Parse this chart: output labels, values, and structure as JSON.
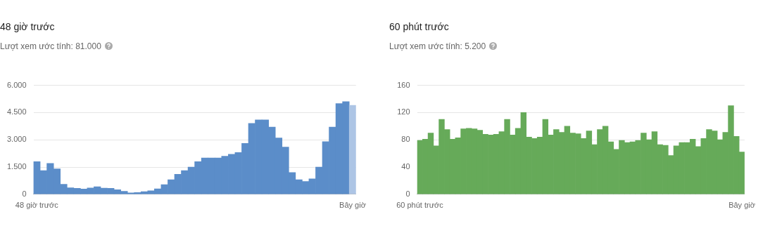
{
  "chart_data": [
    {
      "type": "bar",
      "title": "48 giờ trước",
      "subtitle": "Lượt xem ước tính: 81.000",
      "categories": [
        "48 giờ trước",
        null,
        null,
        null,
        null,
        null,
        null,
        null,
        null,
        null,
        null,
        null,
        null,
        null,
        null,
        null,
        null,
        null,
        null,
        null,
        null,
        null,
        null,
        null,
        null,
        null,
        null,
        null,
        null,
        null,
        null,
        null,
        null,
        null,
        null,
        null,
        null,
        null,
        null,
        null,
        null,
        null,
        null,
        null,
        null,
        null,
        null,
        "Bây giờ"
      ],
      "values": [
        1800,
        1300,
        1700,
        1400,
        550,
        360,
        330,
        290,
        350,
        410,
        340,
        330,
        250,
        160,
        80,
        100,
        140,
        190,
        300,
        530,
        800,
        1100,
        1300,
        1500,
        1800,
        2000,
        2000,
        2000,
        2100,
        2200,
        2300,
        2800,
        3900,
        4100,
        4100,
        3700,
        3100,
        2600,
        1200,
        800,
        700,
        850,
        1500,
        2900,
        3700,
        5000,
        5100,
        4900
      ],
      "colors": [
        "#5b8dc9",
        "#5b8dc9",
        "#5b8dc9",
        "#5b8dc9",
        "#5b8dc9",
        "#5b8dc9",
        "#5b8dc9",
        "#5b8dc9",
        "#5b8dc9",
        "#5b8dc9",
        "#5b8dc9",
        "#5b8dc9",
        "#5b8dc9",
        "#5b8dc9",
        "#5b8dc9",
        "#5b8dc9",
        "#5b8dc9",
        "#5b8dc9",
        "#5b8dc9",
        "#5b8dc9",
        "#5b8dc9",
        "#5b8dc9",
        "#5b8dc9",
        "#5b8dc9",
        "#5b8dc9",
        "#5b8dc9",
        "#5b8dc9",
        "#5b8dc9",
        "#5b8dc9",
        "#5b8dc9",
        "#5b8dc9",
        "#5b8dc9",
        "#5b8dc9",
        "#5b8dc9",
        "#5b8dc9",
        "#5b8dc9",
        "#5b8dc9",
        "#5b8dc9",
        "#5b8dc9",
        "#5b8dc9",
        "#5b8dc9",
        "#5b8dc9",
        "#5b8dc9",
        "#5b8dc9",
        "#5b8dc9",
        "#5b8dc9",
        "#5b8dc9",
        "#adc5e5"
      ],
      "ylim": [
        0,
        6000
      ],
      "yticks": [
        0,
        {
          "value": 1500,
          "label": "1.500"
        },
        {
          "value": 3000,
          "label": "3.000"
        },
        {
          "value": 4500,
          "label": "4.500"
        },
        {
          "value": 6000,
          "label": "6.000"
        }
      ],
      "grid": "y"
    },
    {
      "type": "bar",
      "title": "60 phút trước",
      "subtitle": "Lượt xem ước tính: 5.200",
      "categories": [
        "60 phút trước",
        null,
        null,
        null,
        null,
        null,
        null,
        null,
        null,
        null,
        null,
        null,
        null,
        null,
        null,
        null,
        null,
        null,
        null,
        null,
        null,
        null,
        null,
        null,
        null,
        null,
        null,
        null,
        null,
        null,
        null,
        null,
        null,
        null,
        null,
        null,
        null,
        null,
        null,
        null,
        null,
        null,
        null,
        null,
        null,
        null,
        null,
        null,
        null,
        null,
        null,
        null,
        null,
        null,
        null,
        null,
        null,
        null,
        null,
        "Bây giờ"
      ],
      "values": [
        79,
        81,
        90,
        71,
        110,
        95,
        81,
        83,
        96,
        97,
        96,
        94,
        88,
        87,
        88,
        92,
        110,
        87,
        97,
        120,
        84,
        82,
        84,
        110,
        87,
        95,
        91,
        100,
        90,
        89,
        82,
        93,
        73,
        95,
        100,
        77,
        66,
        79,
        76,
        77,
        79,
        90,
        80,
        92,
        73,
        72,
        57,
        71,
        76,
        76,
        81,
        70,
        82,
        95,
        93,
        80,
        91,
        130,
        85,
        62
      ],
      "color": "#66aa59",
      "ylim": [
        0,
        160
      ],
      "yticks": [
        0,
        40,
        80,
        120,
        160
      ],
      "grid": "y"
    }
  ]
}
